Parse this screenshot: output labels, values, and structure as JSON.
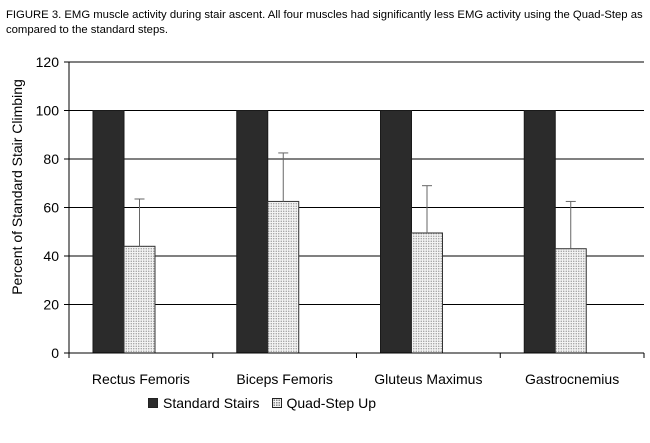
{
  "caption": "FIGURE 3.  EMG muscle activity during stair ascent.  All four muscles had significantly less EMG activity using the Quad-Step as compared to the standard steps.",
  "colors": {
    "standard": "#2b2b2b",
    "quad": "#f3f3f3",
    "quad_dots": "#8a8a8a"
  },
  "chart_data": {
    "type": "bar",
    "title": "",
    "xlabel": "",
    "ylabel": "Percent of Standard Stair Climbing",
    "ylim": [
      0,
      120
    ],
    "yticks": [
      "0",
      "20",
      "40",
      "60",
      "80",
      "100",
      "120"
    ],
    "grid": true,
    "legend_position": "bottom",
    "categories": [
      "Rectus Femoris",
      "Biceps Femoris",
      "Gluteus Maximus",
      "Gastrocnemius"
    ],
    "series": [
      {
        "name": "Standard Stairs",
        "values": [
          100,
          100,
          100,
          100
        ]
      },
      {
        "name": "Quad-Step Up",
        "values": [
          44,
          62.5,
          49.5,
          43
        ],
        "error_plus": [
          19.5,
          20,
          19.5,
          19.5
        ]
      }
    ]
  }
}
